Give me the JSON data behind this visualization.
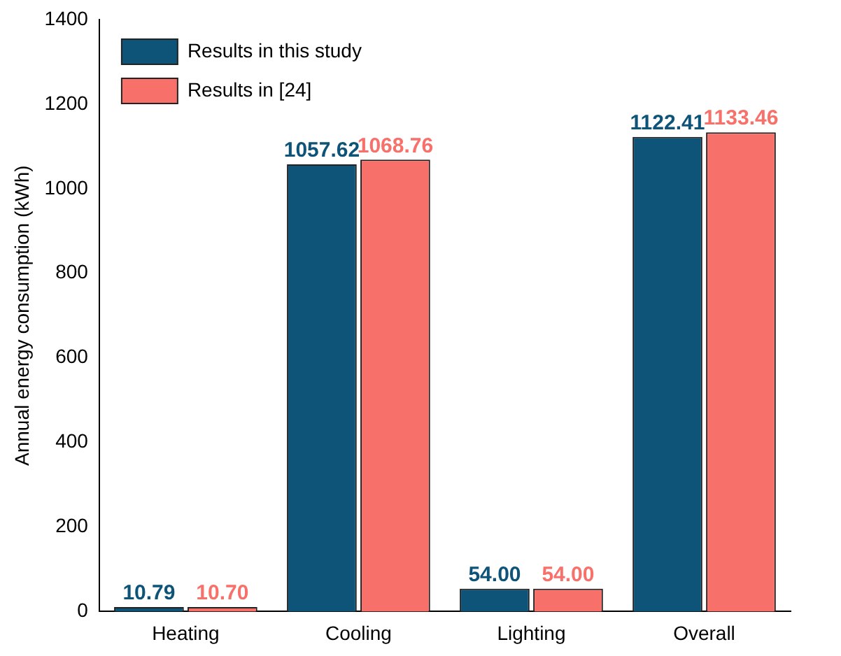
{
  "chart_data": {
    "type": "bar",
    "ylabel": "Annual energy consumption (kWh)",
    "categories": [
      "Heating",
      "Cooling",
      "Lighting",
      "Overall"
    ],
    "series": [
      {
        "name": "Results in this study",
        "color": "#0d5478",
        "values": [
          10.79,
          1057.62,
          54.0,
          1122.41
        ],
        "value_labels": [
          "10.79",
          "1057.62",
          "54.00",
          "1122.41"
        ]
      },
      {
        "name": "Results in [24]",
        "color": "#f8706a",
        "values": [
          10.7,
          1068.76,
          54.0,
          1133.46
        ],
        "value_labels": [
          "10.70",
          "1068.76",
          "54.00",
          "1133.46"
        ]
      }
    ],
    "ylim": [
      0,
      1400
    ],
    "yticks": [
      0,
      200,
      400,
      600,
      800,
      1000,
      1200,
      1400
    ],
    "grid": false,
    "legend": "top left"
  }
}
